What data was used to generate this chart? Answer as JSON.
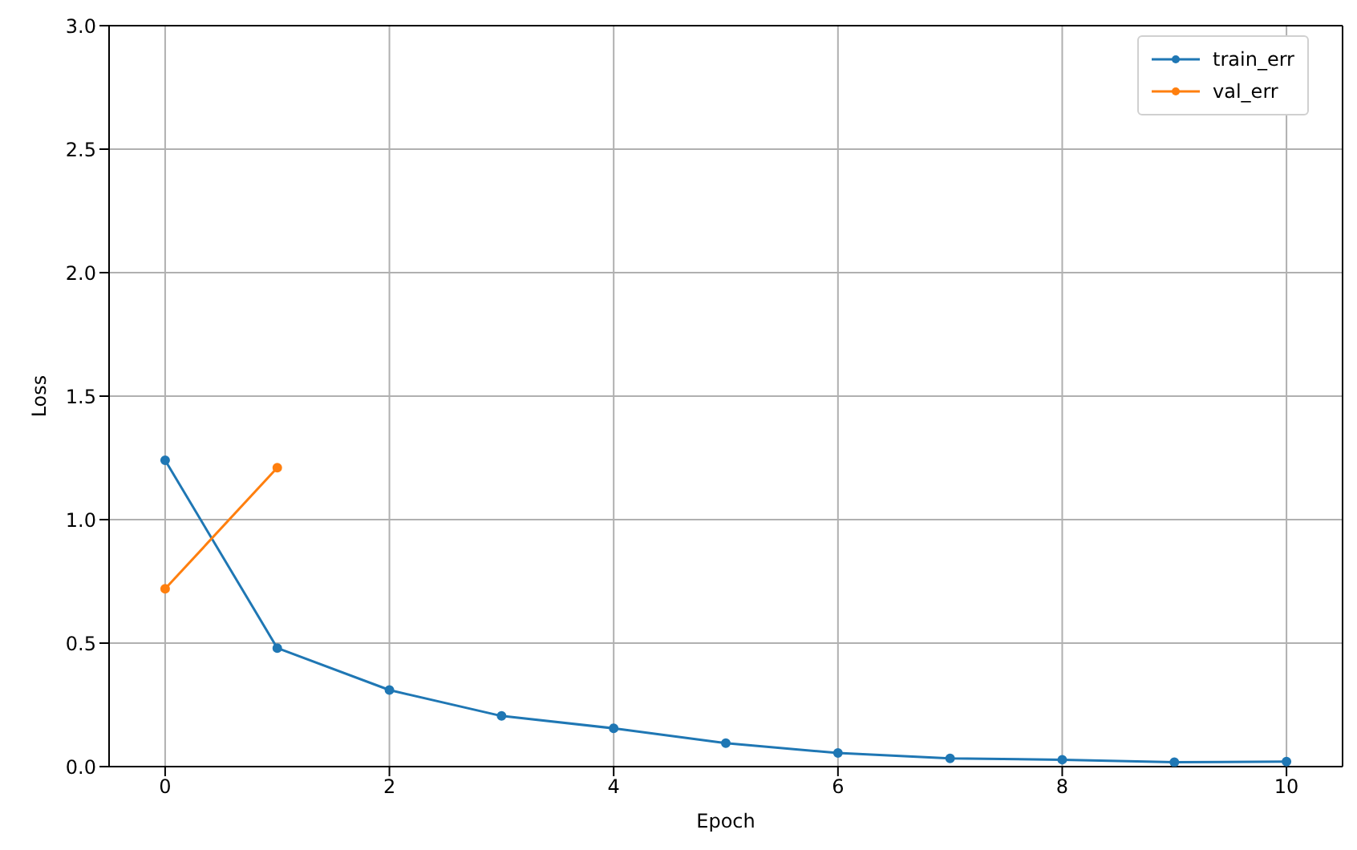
{
  "chart_data": {
    "type": "line",
    "xlabel": "Epoch",
    "ylabel": "Loss",
    "x": [
      0,
      1,
      2,
      3,
      4,
      5,
      6,
      7,
      8,
      9,
      10
    ],
    "series": [
      {
        "name": "train_err",
        "color": "#1f77b4",
        "values": [
          1.24,
          0.48,
          0.31,
          0.205,
          0.155,
          0.095,
          0.055,
          0.033,
          0.028,
          0.018,
          0.02
        ]
      },
      {
        "name": "val_err",
        "color": "#ff7f0e",
        "values": [
          0.72,
          1.21,
          null,
          null,
          null,
          null,
          null,
          null,
          null,
          null,
          null
        ]
      }
    ],
    "xlim": [
      -0.5,
      10.5
    ],
    "xticks": [
      0,
      2,
      4,
      6,
      8,
      10
    ],
    "ylim": [
      0,
      3
    ],
    "yticks": [
      {
        "value": 0,
        "label": "0.0"
      },
      {
        "value": 0.5,
        "label": "0.5"
      },
      {
        "value": 1,
        "label": "1.0"
      },
      {
        "value": 1.5,
        "label": "1.5"
      },
      {
        "value": 2,
        "label": "2.0"
      },
      {
        "value": 2.5,
        "label": "2.5"
      },
      {
        "value": 3,
        "label": "3.0"
      }
    ],
    "grid": true,
    "legend": "top right",
    "marker": "circle",
    "line_style": "solid"
  }
}
